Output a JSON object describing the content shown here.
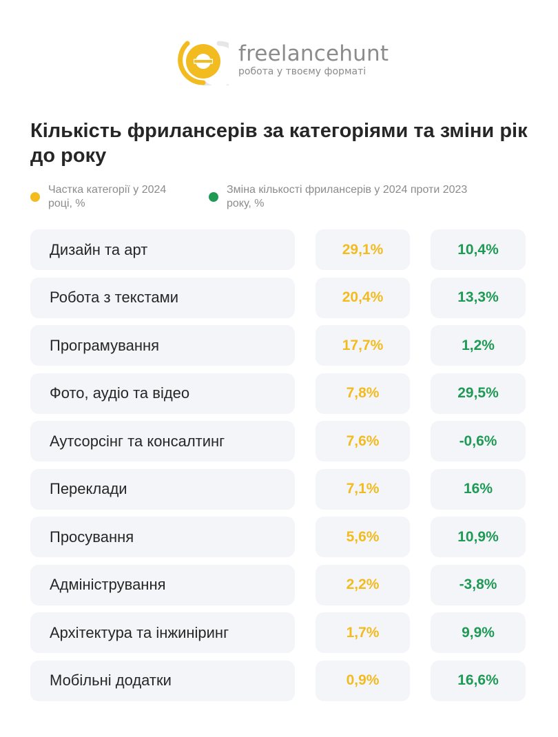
{
  "brand": {
    "name": "freelancehunt",
    "tagline": "робота у твоєму форматі"
  },
  "colors": {
    "yellow": "#f2bb1f",
    "green": "#1e9a55",
    "row_bg": "#f4f5f9",
    "logo_gray": "#e6e6e6"
  },
  "chart_data": {
    "type": "table",
    "title": "Кількість фрилансерів за категоріями та зміни рік до року",
    "series": [
      {
        "name": "Частка категорії у 2024 році, %",
        "color": "#f2bb1f"
      },
      {
        "name": "Зміна кількості фрилансерів у 2024 проти 2023 року, %",
        "color": "#1e9a55"
      }
    ],
    "rows": [
      {
        "category": "Дизайн та арт",
        "share": "29,1%",
        "change": "10,4%"
      },
      {
        "category": "Робота з текстами",
        "share": "20,4%",
        "change": "13,3%"
      },
      {
        "category": "Програмування",
        "share": "17,7%",
        "change": "1,2%"
      },
      {
        "category": "Фото, аудіо та відео",
        "share": "7,8%",
        "change": "29,5%"
      },
      {
        "category": "Аутсорсінг та консалтинг",
        "share": "7,6%",
        "change": "-0,6%"
      },
      {
        "category": "Переклади",
        "share": "7,1%",
        "change": "16%"
      },
      {
        "category": "Просування",
        "share": "5,6%",
        "change": "10,9%"
      },
      {
        "category": "Адміністрування",
        "share": "2,2%",
        "change": "-3,8%"
      },
      {
        "category": "Архітектура та інжиніринг",
        "share": "1,7%",
        "change": "9,9%"
      },
      {
        "category": "Мобільні додатки",
        "share": "0,9%",
        "change": "16,6%"
      }
    ]
  }
}
